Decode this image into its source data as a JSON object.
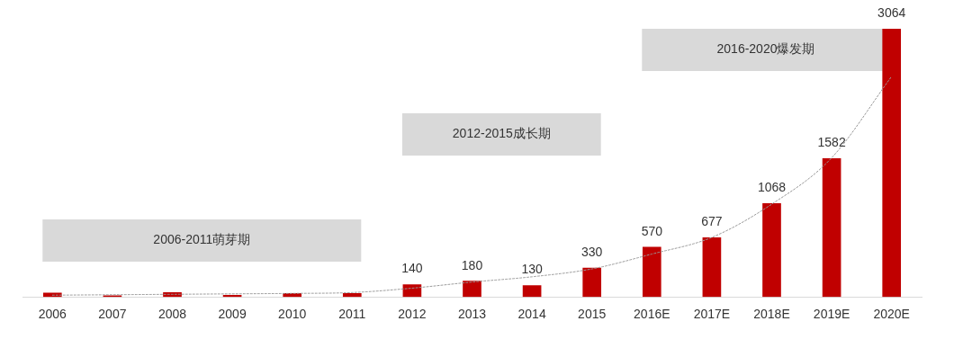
{
  "chart_data": {
    "type": "bar",
    "categories": [
      "2006",
      "2007",
      "2008",
      "2009",
      "2010",
      "2011",
      "2012",
      "2013",
      "2014",
      "2015",
      "2016E",
      "2017E",
      "2018E",
      "2019E",
      "2020E"
    ],
    "series": [
      {
        "color": "#c00000",
        "values": [
          45,
          15,
          50,
          20,
          40,
          40,
          140,
          180,
          130,
          330,
          570,
          677,
          1068,
          1582,
          3064
        ],
        "value_labels": [
          null,
          null,
          null,
          null,
          null,
          null,
          "140",
          "180",
          "130",
          "330",
          "570",
          "677",
          "1068",
          "1582",
          "3064"
        ]
      },
      {
        "type": "line",
        "color": "#999999",
        "line_style": "dotted",
        "marker": "none",
        "values": [
          20,
          25,
          30,
          35,
          40,
          50,
          100,
          170,
          230,
          320,
          490,
          680,
          1060,
          1590,
          2520
        ]
      }
    ],
    "bands": [
      {
        "axis": "x",
        "from": "2006",
        "to": "2011",
        "label": "2006-2011萌芽期",
        "color": "#d9d9d9"
      },
      {
        "axis": "x",
        "from": "2012",
        "to": "2015",
        "label": "2012-2015成长期",
        "color": "#d9d9d9"
      },
      {
        "axis": "x",
        "from": "2016E",
        "to": "2020E",
        "label": "2016-2020爆发期",
        "color": "#d9d9d9"
      }
    ],
    "grid": false,
    "legend": false
  }
}
